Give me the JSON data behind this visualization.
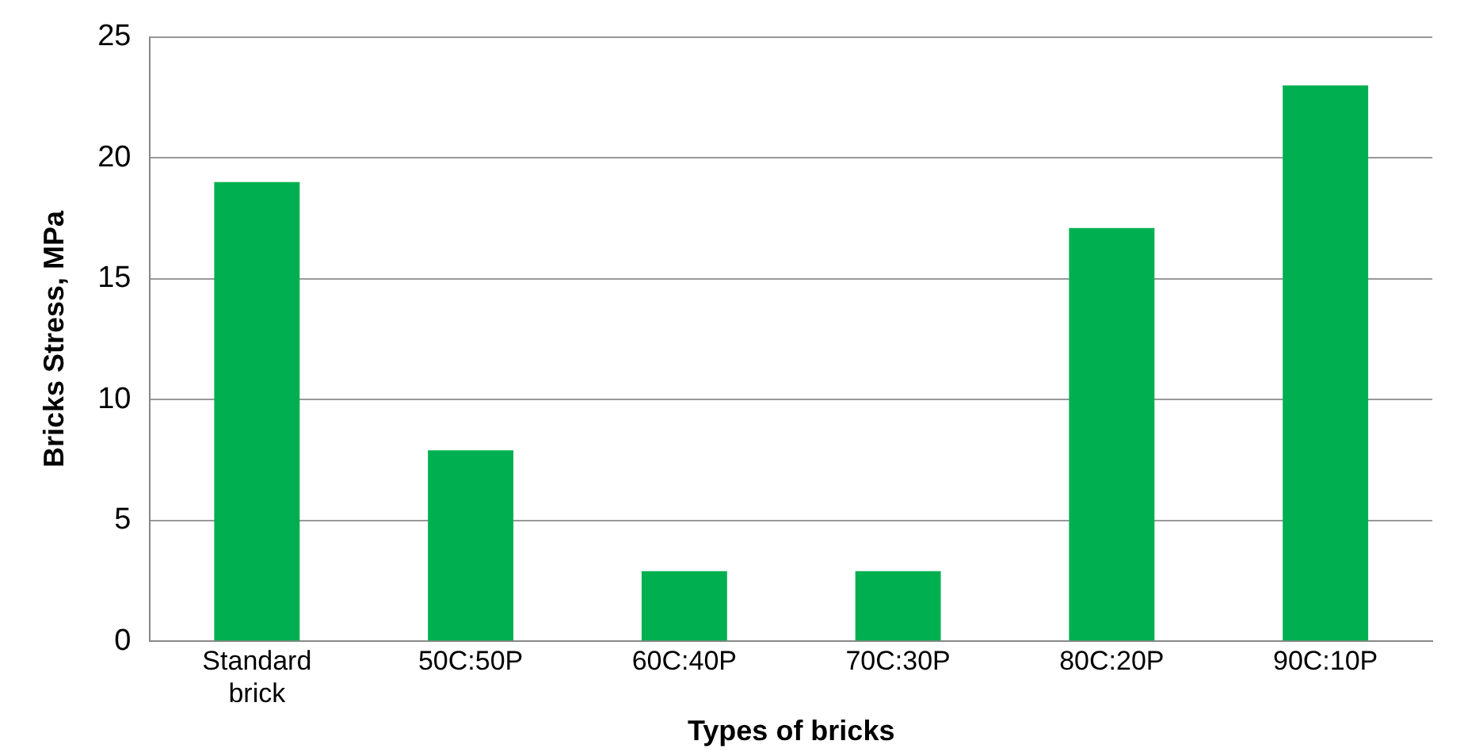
{
  "chart_data": {
    "type": "bar",
    "xlabel": "Types of bricks",
    "ylabel": "Bricks Stress, MPa",
    "categories": [
      "Standard brick",
      "50C:50P",
      "60C:40P",
      "70C:30P",
      "80C:20P",
      "90C:10P"
    ],
    "values": [
      19,
      7.9,
      2.9,
      2.9,
      17.1,
      23
    ],
    "color": "#00b050",
    "ylim": [
      0,
      25
    ],
    "yticks": [
      0,
      5,
      10,
      15,
      20,
      25
    ],
    "grid": "y",
    "legend": false
  }
}
